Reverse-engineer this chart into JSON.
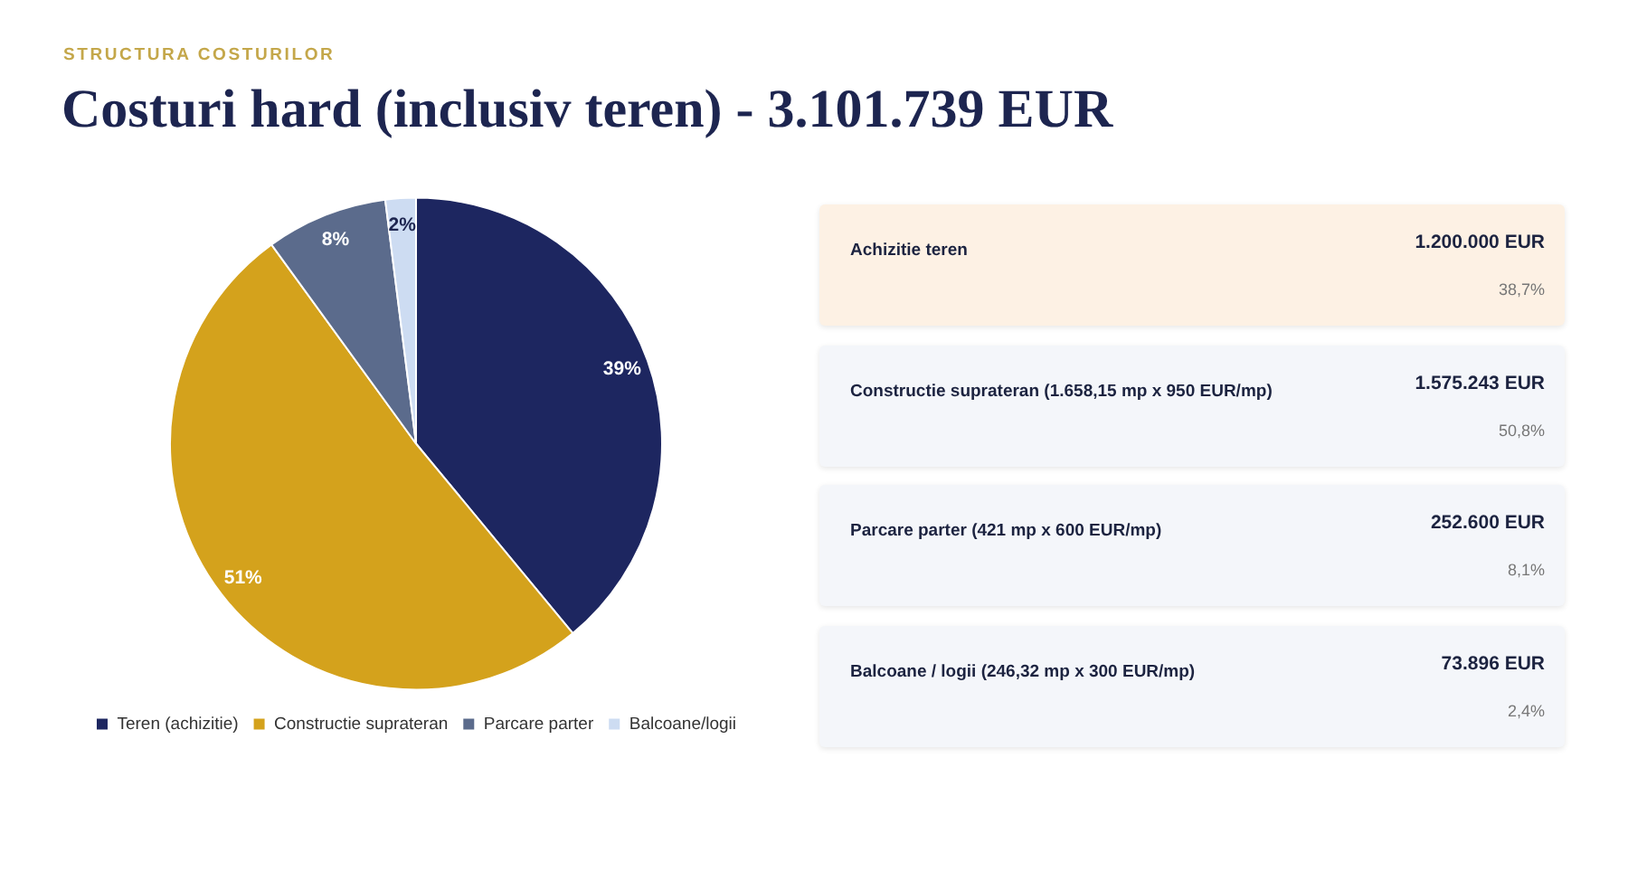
{
  "chart_data": [
    {
      "type": "pie",
      "subtitle": "STRUCTURA COSTURILOR",
      "title": "Costuri hard (inclusiv teren) - 3.101.739 EUR",
      "categories": [
        "Teren (achizitie)",
        "Constructie suprateran",
        "Parcare parter",
        "Balcoane/logii"
      ],
      "values": [
        39,
        51,
        8,
        2
      ],
      "colors": [
        "#1d2660",
        "#d4a21c",
        "#5b6b8c",
        "#cddcf2"
      ],
      "value_labels": [
        "39%",
        "51%",
        "8%",
        "2%"
      ],
      "legend": "bottom"
    },
    {
      "type": "other",
      "annotations": [
        "Achizitie teren",
        "1.200.000 EUR",
        "38,7%",
        "Constructie suprateran (1.658,15 mp x 950 EUR/mp)",
        "1.575.243 EUR",
        "50,8%",
        "Parcare parter (421 mp x 600 EUR/mp)",
        "252.600 EUR",
        "8,1%",
        "Balcoane / logii (246,32 mp x 300 EUR/mp)",
        "73.896 EUR",
        "2,4%"
      ]
    }
  ]
}
